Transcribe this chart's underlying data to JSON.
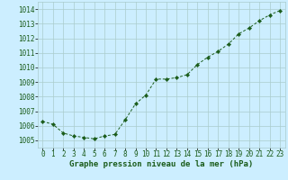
{
  "x": [
    0,
    1,
    2,
    3,
    4,
    5,
    6,
    7,
    8,
    9,
    10,
    11,
    12,
    13,
    14,
    15,
    16,
    17,
    18,
    19,
    20,
    21,
    22,
    23
  ],
  "y": [
    1006.3,
    1006.1,
    1005.5,
    1005.3,
    1005.2,
    1005.1,
    1005.3,
    1005.4,
    1006.4,
    1007.5,
    1008.1,
    1009.2,
    1009.2,
    1009.3,
    1009.5,
    1010.2,
    1010.7,
    1011.1,
    1011.6,
    1012.3,
    1012.7,
    1013.2,
    1013.6,
    1013.9
  ],
  "line_color": "#1a5c1a",
  "marker": "D",
  "marker_size": 2.2,
  "bg_color": "#cceeff",
  "grid_color": "#aacccc",
  "xlabel": "Graphe pression niveau de la mer (hPa)",
  "xlabel_color": "#1a5c1a",
  "tick_color": "#1a5c1a",
  "ylim": [
    1004.5,
    1014.5
  ],
  "xlim": [
    -0.5,
    23.5
  ],
  "yticks": [
    1005,
    1006,
    1007,
    1008,
    1009,
    1010,
    1011,
    1012,
    1013,
    1014
  ],
  "xticks": [
    0,
    1,
    2,
    3,
    4,
    5,
    6,
    7,
    8,
    9,
    10,
    11,
    12,
    13,
    14,
    15,
    16,
    17,
    18,
    19,
    20,
    21,
    22,
    23
  ],
  "xlabel_fontsize": 6.5,
  "tick_fontsize": 5.5
}
